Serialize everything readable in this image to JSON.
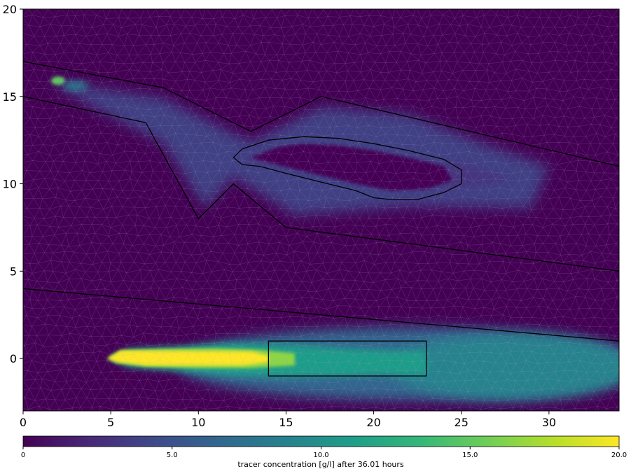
{
  "chart_data": {
    "type": "heatmap",
    "title": "",
    "xlabel": "",
    "ylabel": "",
    "xlim": [
      0,
      34
    ],
    "ylim": [
      -3,
      20
    ],
    "x_ticks": [
      0,
      5,
      10,
      15,
      20,
      25,
      30
    ],
    "y_ticks": [
      0,
      5,
      10,
      15,
      20
    ],
    "grid": false,
    "mesh": "triangular",
    "background_value": 0,
    "colormap": {
      "name": "viridis",
      "stops": [
        "#440154",
        "#482878",
        "#3e4a89",
        "#31688e",
        "#26828e",
        "#1f9e89",
        "#35b779",
        "#6ece58",
        "#b5de2b",
        "#fde725"
      ]
    },
    "colorbar": {
      "label": "tracer concentration [g/l] after 36.01 hours",
      "range": [
        0,
        20
      ],
      "ticks": [
        "0",
        "5.0",
        "10.0",
        "15.0",
        "20.0"
      ],
      "orientation": "horizontal",
      "placement": "bottom"
    },
    "boundary_lines": [
      [
        [
          0,
          17
        ],
        [
          8,
          15.5
        ],
        [
          13,
          13
        ],
        [
          17,
          15
        ],
        [
          34,
          11
        ]
      ],
      [
        [
          0,
          15
        ],
        [
          7,
          13.5
        ],
        [
          10,
          8
        ],
        [
          12,
          10
        ],
        [
          15,
          7.5
        ],
        [
          34,
          5
        ]
      ],
      [
        [
          0,
          4
        ],
        [
          34,
          1
        ]
      ]
    ],
    "island_polygon": [
      [
        12,
        11.5
      ],
      [
        12.5,
        12
      ],
      [
        14,
        12.5
      ],
      [
        16,
        12.7
      ],
      [
        18,
        12.6
      ],
      [
        20,
        12.3
      ],
      [
        22,
        11.9
      ],
      [
        24,
        11.4
      ],
      [
        25,
        10.8
      ],
      [
        25,
        10
      ],
      [
        24,
        9.5
      ],
      [
        22.5,
        9.1
      ],
      [
        21,
        9.1
      ],
      [
        20,
        9.2
      ],
      [
        19,
        9.6
      ],
      [
        17,
        10.1
      ],
      [
        15,
        10.6
      ],
      [
        13.5,
        11
      ],
      [
        12.5,
        11.1
      ]
    ],
    "observation_box": {
      "x": [
        14,
        23
      ],
      "y": [
        -1,
        1
      ]
    },
    "concentration_regions": [
      {
        "region": "upper plume",
        "value_range": [
          0,
          5
        ],
        "source_point": [
          2,
          15.9
        ],
        "source_value": 15
      },
      {
        "region": "lower plume",
        "value_range": [
          0,
          20
        ],
        "core_value": 20,
        "core_x": [
          5,
          14
        ],
        "tail_value": 9
      }
    ]
  }
}
